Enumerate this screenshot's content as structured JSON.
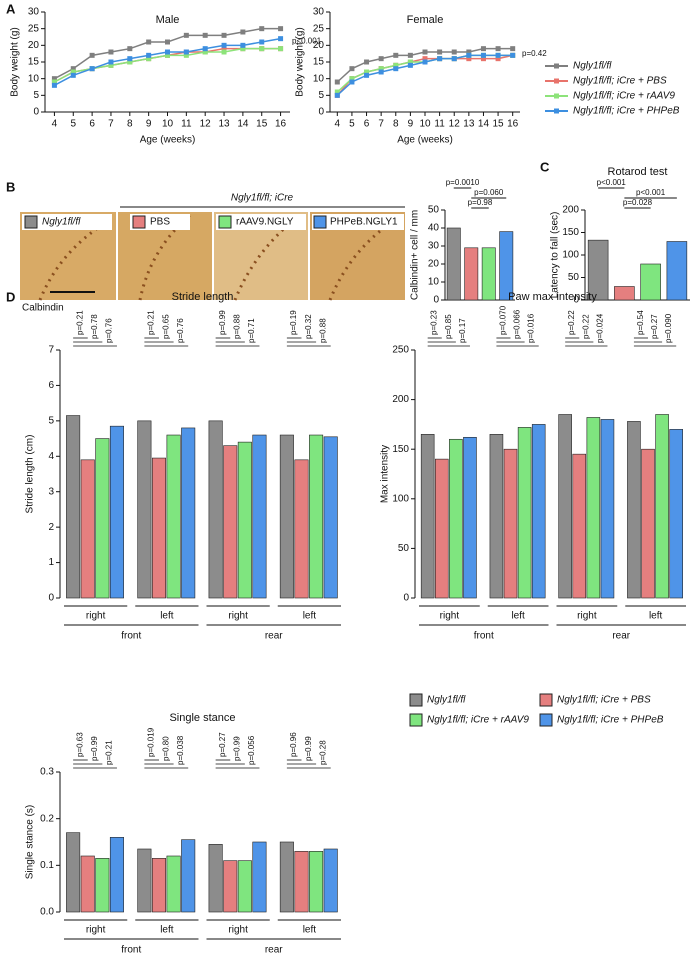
{
  "panels": [
    "A",
    "B",
    "C",
    "D"
  ],
  "histology": {
    "header": "Ngly1fl/fl; iCre",
    "labels": [
      "Ngly1fl/fl",
      "PBS",
      "rAAV9.NGLY",
      "PHPeB.NGLY1"
    ],
    "stain": "Calbindin"
  },
  "chart_data": [
    {
      "type": "line",
      "title": "Male",
      "xlabel": "Age (weeks)",
      "ylabel": "Body weight (g)",
      "x": [
        4,
        5,
        6,
        7,
        8,
        9,
        10,
        11,
        12,
        13,
        14,
        15,
        16
      ],
      "xlim": [
        3.5,
        16.5
      ],
      "xticks": [
        4,
        5,
        6,
        7,
        8,
        9,
        10,
        11,
        12,
        13,
        14,
        15,
        16
      ],
      "ylim": [
        0,
        30
      ],
      "yticks": [
        0,
        5,
        10,
        15,
        20,
        25,
        30
      ],
      "annotation": "p<0.001",
      "series": [
        {
          "name": "Ngly1fl/fl",
          "color": "#7f7f7f",
          "values": [
            10,
            13,
            17,
            18,
            19,
            21,
            21,
            23,
            23,
            23,
            24,
            25,
            25
          ]
        },
        {
          "name": "Ngly1fl/fl; iCre + PBS",
          "color": "#e8736b",
          "values": [
            9,
            12,
            13,
            14,
            15,
            16,
            17,
            18,
            18,
            19,
            19,
            19,
            19
          ]
        },
        {
          "name": "Ngly1fl/fl; iCre + rAAV9",
          "color": "#8de37a",
          "values": [
            9,
            12,
            13,
            14,
            15,
            16,
            17,
            17,
            18,
            18,
            19,
            19,
            19
          ]
        },
        {
          "name": "Ngly1fl/fl; iCre + PHPeB",
          "color": "#3d8fe0",
          "values": [
            8,
            11,
            13,
            15,
            16,
            17,
            18,
            18,
            19,
            20,
            20,
            21,
            22
          ]
        }
      ]
    },
    {
      "type": "line",
      "title": "Female",
      "xlabel": "Age (weeks)",
      "ylabel": "Body weight (g)",
      "x": [
        4,
        5,
        6,
        7,
        8,
        9,
        10,
        11,
        12,
        13,
        14,
        15,
        16
      ],
      "xlim": [
        3.5,
        16.5
      ],
      "xticks": [
        4,
        5,
        6,
        7,
        8,
        9,
        10,
        11,
        12,
        13,
        14,
        15,
        16
      ],
      "ylim": [
        0,
        30
      ],
      "yticks": [
        0,
        5,
        10,
        15,
        20,
        25,
        30
      ],
      "annotation": "p=0.42",
      "series": [
        {
          "color": "#7f7f7f",
          "values": [
            9,
            13,
            15,
            16,
            17,
            17,
            18,
            18,
            18,
            18,
            19,
            19,
            19
          ]
        },
        {
          "color": "#e8736b",
          "values": [
            5,
            10,
            12,
            13,
            14,
            15,
            16,
            16,
            16,
            16,
            16,
            16,
            17
          ]
        },
        {
          "color": "#8de37a",
          "values": [
            6,
            10,
            12,
            13,
            14,
            15,
            15,
            16,
            16,
            17,
            17,
            17,
            17
          ]
        },
        {
          "color": "#3d8fe0",
          "values": [
            5,
            9,
            11,
            12,
            13,
            14,
            15,
            16,
            16,
            17,
            17,
            17,
            17
          ]
        }
      ]
    },
    {
      "type": "bar",
      "ylabel": "Calbindin+ cell / mm",
      "values": [
        40,
        29,
        29,
        38
      ],
      "colors": [
        "#8c8c8c",
        "#e57f7f",
        "#7fe57f",
        "#4f94e8"
      ],
      "ylim": [
        0,
        50
      ],
      "yticks": [
        0,
        10,
        20,
        30,
        40,
        50
      ],
      "annotations": [
        "p=0.0010",
        "p=0.060",
        "p=0.98"
      ]
    },
    {
      "type": "bar",
      "title": "Rotarod test",
      "ylabel": "Latency to fall (sec)",
      "values": [
        133,
        30,
        80,
        130
      ],
      "colors": [
        "#8c8c8c",
        "#e57f7f",
        "#7fe57f",
        "#4f94e8"
      ],
      "ylim": [
        0,
        200
      ],
      "yticks": [
        0,
        50,
        100,
        150,
        200
      ],
      "annotations": [
        "p<0.001",
        "p<0.001",
        "p=0.028"
      ]
    },
    {
      "type": "grouped_bar",
      "title": "Stride length",
      "ylabel": "Stride length (cm)",
      "categories": [
        "right",
        "left",
        "right",
        "left"
      ],
      "groups": [
        "front",
        "rear"
      ],
      "ylim": [
        0,
        7
      ],
      "yticks": [
        0,
        1,
        2,
        3,
        4,
        5,
        6,
        7
      ],
      "series": [
        {
          "name": "Ngly1fl/fl",
          "color": "#8c8c8c",
          "values": [
            5.15,
            5.0,
            5.0,
            4.6
          ]
        },
        {
          "name": "Ngly1fl/fl; iCre + PBS",
          "color": "#e57f7f",
          "values": [
            3.9,
            3.95,
            4.3,
            3.9
          ]
        },
        {
          "name": "Ngly1fl/fl; iCre + rAAV9",
          "color": "#7fe57f",
          "values": [
            4.5,
            4.6,
            4.4,
            4.6
          ]
        },
        {
          "name": "Ngly1fl/fl; iCre + PHPeB",
          "color": "#4f94e8",
          "values": [
            4.85,
            4.8,
            4.6,
            4.55
          ]
        }
      ],
      "annotations": [
        [
          "p=0.21",
          "p=0.78",
          "p=0.76"
        ],
        [
          "p=0.21",
          "p=0.65",
          "p=0.76"
        ],
        [
          "p=0.99",
          "p=0.88",
          "p=0.71"
        ],
        [
          "p=0.19",
          "p=0.32",
          "p=0.88"
        ]
      ]
    },
    {
      "type": "grouped_bar",
      "title": "Paw max intensity",
      "ylabel": "Max intensity",
      "categories": [
        "right",
        "left",
        "right",
        "left"
      ],
      "groups": [
        "front",
        "rear"
      ],
      "ylim": [
        0,
        250
      ],
      "yticks": [
        0,
        50,
        100,
        150,
        200,
        250
      ],
      "series": [
        {
          "color": "#8c8c8c",
          "values": [
            165,
            165,
            185,
            178
          ]
        },
        {
          "color": "#e57f7f",
          "values": [
            140,
            150,
            145,
            150
          ]
        },
        {
          "color": "#7fe57f",
          "values": [
            160,
            172,
            182,
            185
          ]
        },
        {
          "color": "#4f94e8",
          "values": [
            162,
            175,
            180,
            170
          ]
        }
      ],
      "annotations": [
        [
          "p=0.23",
          "p=0.85",
          "p=0.17"
        ],
        [
          "p=0.070",
          "p=0.066",
          "p=0.016"
        ],
        [
          "p=0.22",
          "p=0.22",
          "p=0.024"
        ],
        [
          "p=0.54",
          "p=0.27",
          "p=0.090"
        ]
      ]
    },
    {
      "type": "grouped_bar",
      "title": "Single stance",
      "ylabel": "Single stance (s)",
      "categories": [
        "right",
        "left",
        "right",
        "left"
      ],
      "groups": [
        "front",
        "rear"
      ],
      "ylim": [
        0,
        0.3
      ],
      "yticks": [
        {
          "value": 0,
          "label": "0.0"
        },
        0.1,
        0.2,
        0.3
      ],
      "series": [
        {
          "color": "#8c8c8c",
          "values": [
            0.17,
            0.135,
            0.145,
            0.15
          ]
        },
        {
          "color": "#e57f7f",
          "values": [
            0.12,
            0.115,
            0.11,
            0.13
          ]
        },
        {
          "color": "#7fe57f",
          "values": [
            0.115,
            0.12,
            0.11,
            0.13
          ]
        },
        {
          "color": "#4f94e8",
          "values": [
            0.16,
            0.155,
            0.15,
            0.135
          ]
        }
      ],
      "annotations": [
        [
          "p=0.63",
          "p=0.99",
          "p=0.21"
        ],
        [
          "p=0.019",
          "p=0.80",
          "p=0.038"
        ],
        [
          "p=0.27",
          "p=0.99",
          "p=0.056"
        ],
        [
          "p=0.96",
          "p=0.99",
          "p=0.28"
        ]
      ]
    }
  ]
}
